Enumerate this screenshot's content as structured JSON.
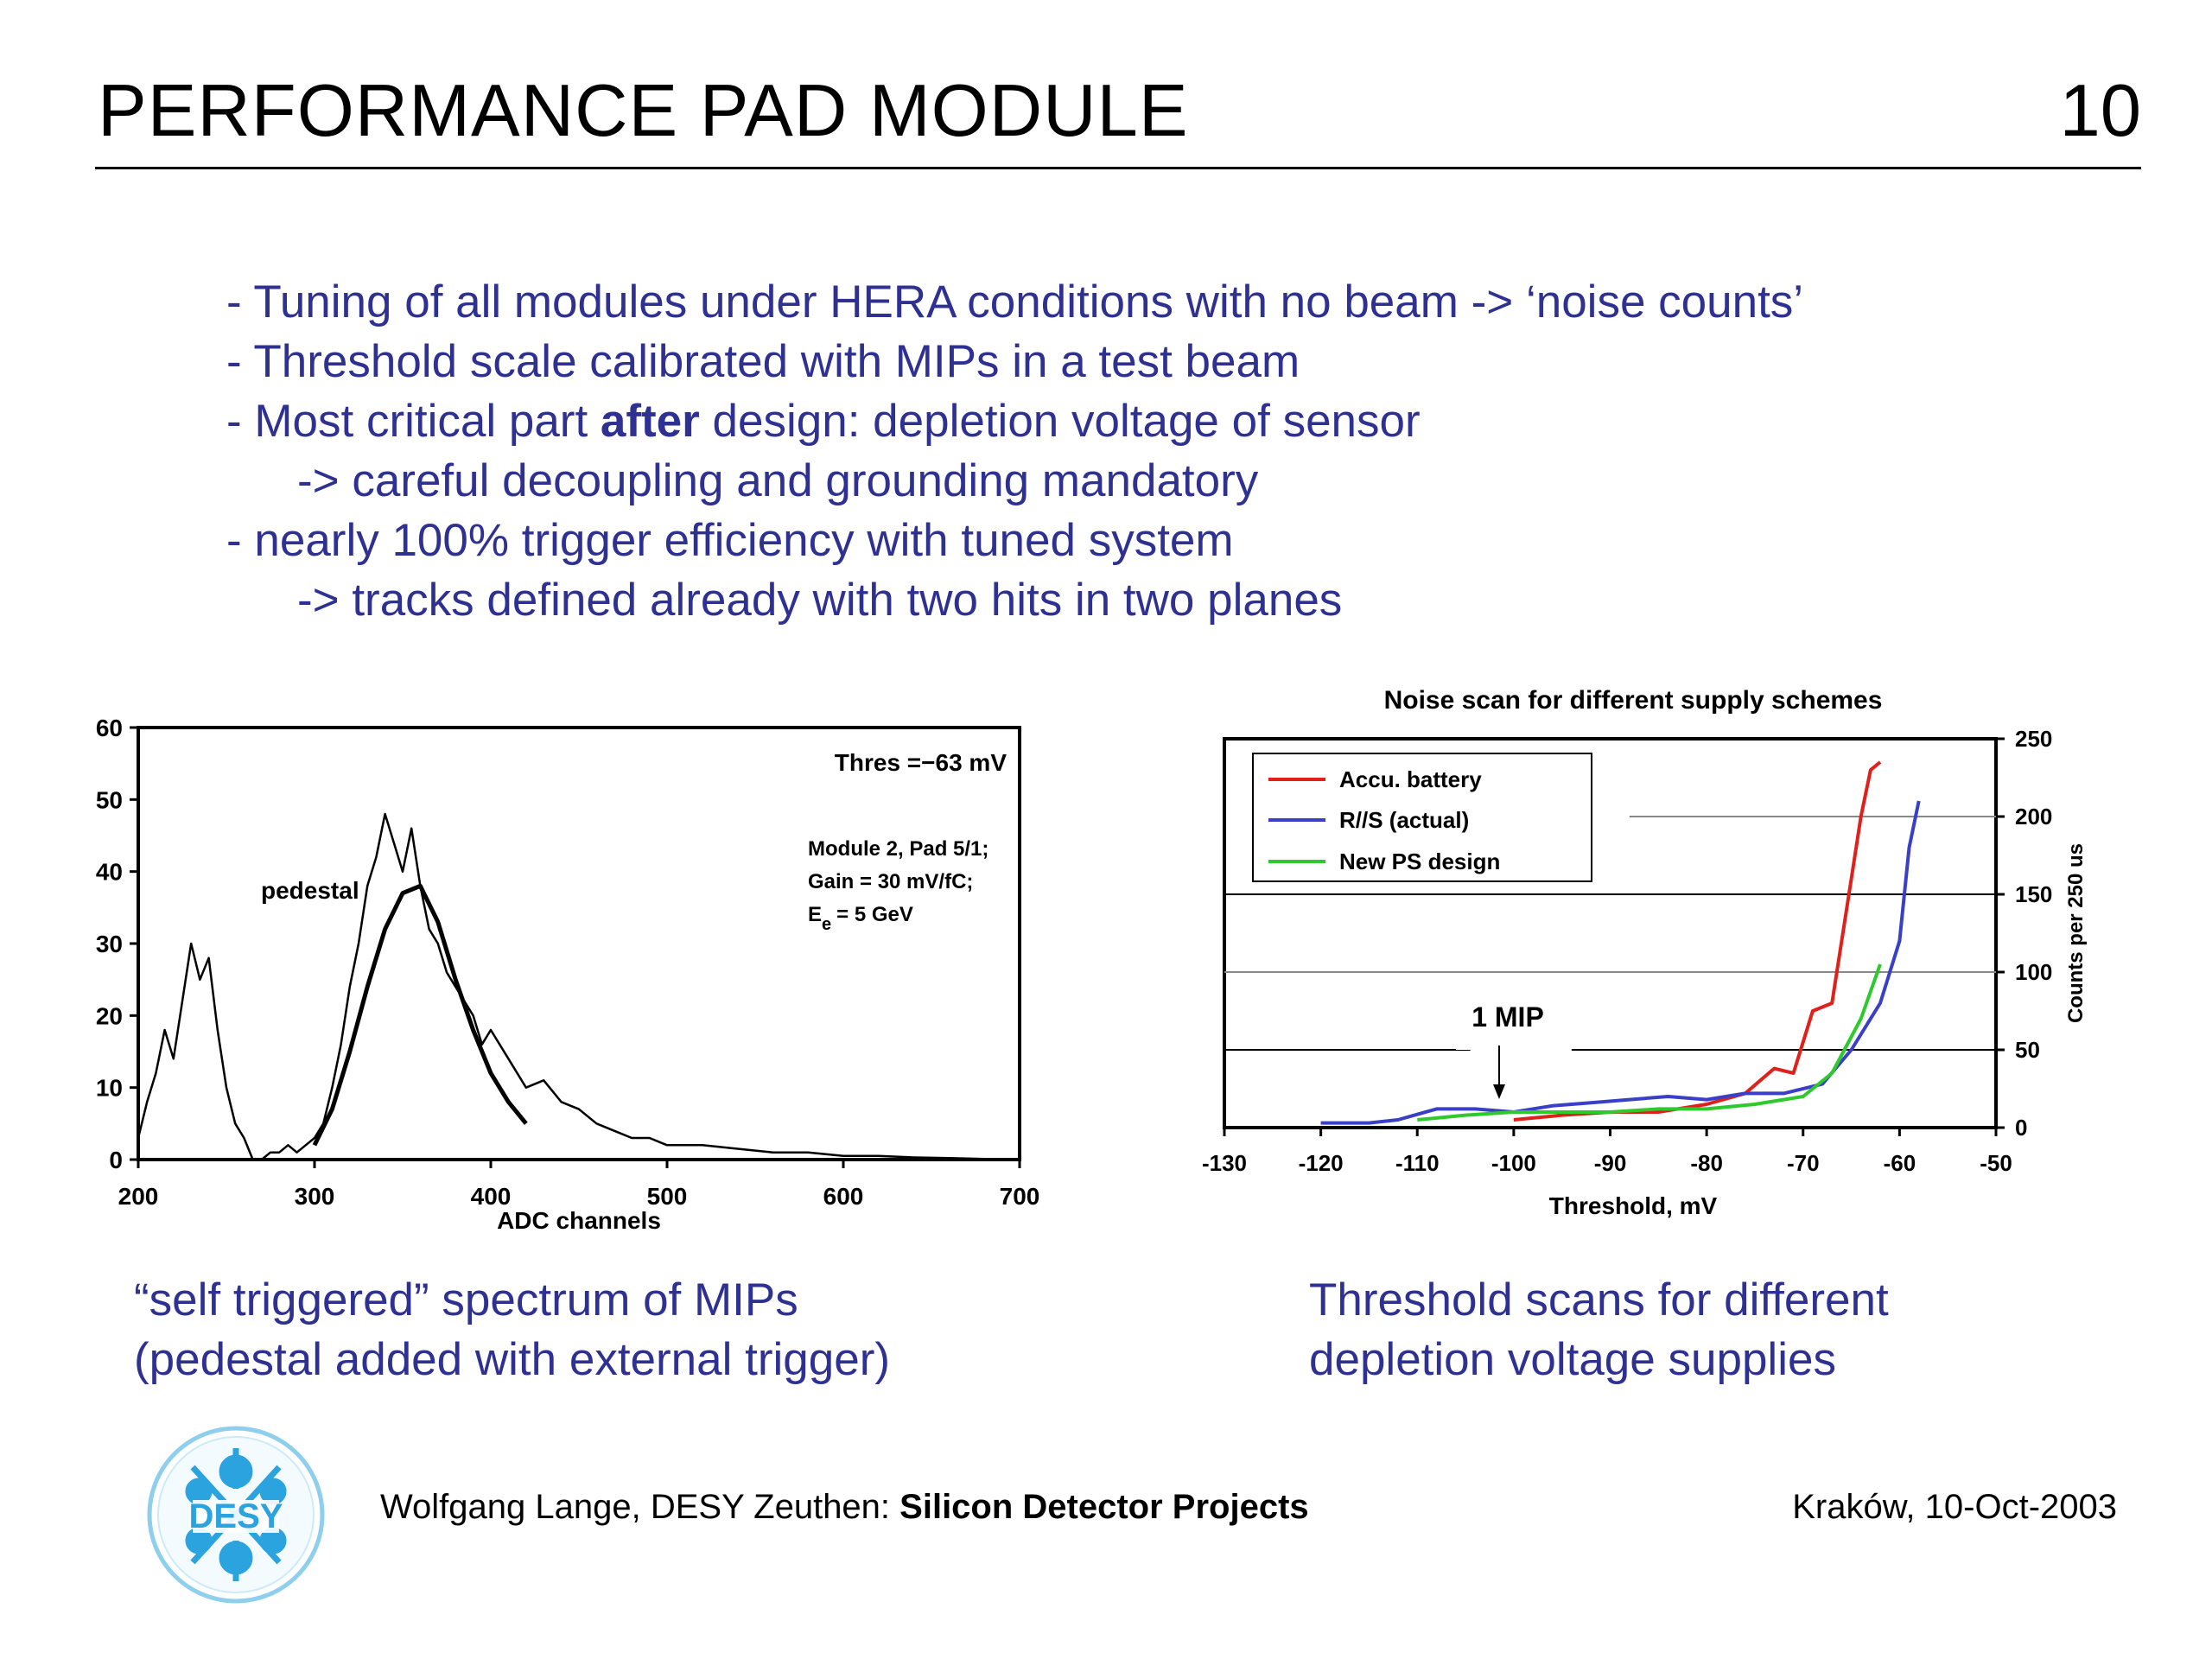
{
  "header": {
    "title": "PERFORMANCE PAD MODULE",
    "page_number": "10"
  },
  "bullets": [
    {
      "text": "- Tuning of all modules under HERA conditions with no beam -> ‘noise counts’"
    },
    {
      "text": "- Threshold scale calibrated with MIPs in a test beam"
    },
    {
      "pre": "- Most critical part ",
      "bold": "after",
      "post": " design: depletion voltage of sensor"
    },
    {
      "text": "-> careful decoupling and grounding mandatory"
    },
    {
      "text": "- nearly 100% trigger efficiency with tuned system"
    },
    {
      "text": "-> tracks defined already with two hits in two planes"
    }
  ],
  "captions": {
    "left_line1": "“self triggered” spectrum of MIPs",
    "left_line2": "(pedestal added with external trigger)",
    "right_line1": "Threshold scans for different",
    "right_line2": "depletion voltage supplies"
  },
  "footer": {
    "left_prefix": "Wolfgang Lange, DESY Zeuthen: ",
    "left_bold": "Silicon Detector Projects",
    "right": "Kraków, 10-Oct-2003"
  },
  "logo": {
    "text": "DESY"
  },
  "chart_data": [
    {
      "type": "line",
      "title": "",
      "xlabel": "ADC channels",
      "ylabel": "",
      "xlim": [
        200,
        700
      ],
      "ylim": [
        0,
        60
      ],
      "xticks": [
        200,
        300,
        400,
        500,
        600,
        700
      ],
      "yticks": [
        0,
        10,
        20,
        30,
        40,
        50,
        60
      ],
      "annotations": {
        "pedestal": "pedestal",
        "thres": "Thres =−63 mV",
        "module": "Module 2, Pad 5/1;",
        "gain": "Gain = 30 mV/fC;",
        "energy_e": "E",
        "energy_sub": "e",
        "energy_val": "= 5 GeV"
      },
      "series": [
        {
          "x": [
            200,
            205,
            210,
            215,
            220,
            225,
            230,
            235,
            240,
            245,
            250,
            255,
            260,
            265,
            270,
            275,
            280,
            285,
            290,
            295,
            300,
            305,
            310,
            315,
            320,
            325,
            330,
            335,
            340,
            345,
            350,
            355,
            360,
            365,
            370,
            375,
            380,
            385,
            390,
            395,
            400,
            410,
            420,
            430,
            440,
            450,
            460,
            470,
            480,
            490,
            500,
            520,
            540,
            560,
            580,
            600,
            620,
            640,
            660,
            680,
            700
          ],
          "y": [
            3,
            8,
            12,
            18,
            14,
            22,
            30,
            25,
            28,
            18,
            10,
            5,
            3,
            0,
            0,
            1,
            1,
            2,
            1,
            2,
            3,
            5,
            10,
            16,
            24,
            30,
            38,
            42,
            48,
            44,
            40,
            46,
            38,
            32,
            30,
            26,
            24,
            22,
            20,
            16,
            18,
            14,
            10,
            11,
            8,
            7,
            5,
            4,
            3,
            3,
            2,
            2,
            1.5,
            1,
            1,
            0.5,
            0.5,
            0.3,
            0.2,
            0.1,
            0
          ]
        },
        {
          "x": [
            300,
            310,
            320,
            330,
            340,
            350,
            360,
            370,
            380,
            390,
            400,
            410,
            420
          ],
          "y": [
            2,
            7,
            15,
            24,
            32,
            37,
            38,
            33,
            25,
            18,
            12,
            8,
            5
          ]
        }
      ]
    },
    {
      "type": "line",
      "title": "Noise scan for different supply schemes",
      "xlabel": "Threshold, mV",
      "ylabel": "Counts per 250 us",
      "xlim": [
        -130,
        -50
      ],
      "ylim": [
        0,
        250
      ],
      "xticks": [
        -130,
        -120,
        -110,
        -100,
        -90,
        -80,
        -70,
        -60,
        -50
      ],
      "yticks": [
        0,
        50,
        100,
        150,
        200,
        250
      ],
      "annotations": {
        "mip": "1 MIP"
      },
      "legend_position": "top-left",
      "series": [
        {
          "name": "Accu. battery",
          "color": "#e0201a",
          "x": [
            -100,
            -95,
            -90,
            -85,
            -80,
            -76,
            -73,
            -71,
            -69,
            -67,
            -66,
            -65,
            -64,
            -63,
            -62
          ],
          "y": [
            5,
            8,
            10,
            10,
            15,
            22,
            38,
            35,
            75,
            80,
            120,
            160,
            200,
            230,
            235
          ]
        },
        {
          "name": "R//S (actual)",
          "color": "#3a3fc8",
          "x": [
            -120,
            -115,
            -112,
            -108,
            -104,
            -100,
            -96,
            -92,
            -88,
            -84,
            -80,
            -76,
            -72,
            -68,
            -65,
            -62,
            -60,
            -59,
            -58
          ],
          "y": [
            3,
            3,
            5,
            12,
            12,
            10,
            14,
            16,
            18,
            20,
            18,
            22,
            22,
            28,
            50,
            80,
            120,
            180,
            210
          ]
        },
        {
          "name": "New PS design",
          "color": "#2dc92d",
          "x": [
            -110,
            -105,
            -100,
            -95,
            -90,
            -85,
            -80,
            -75,
            -70,
            -67,
            -64,
            -62
          ],
          "y": [
            5,
            8,
            10,
            10,
            10,
            12,
            12,
            15,
            20,
            35,
            70,
            105
          ]
        }
      ]
    }
  ]
}
